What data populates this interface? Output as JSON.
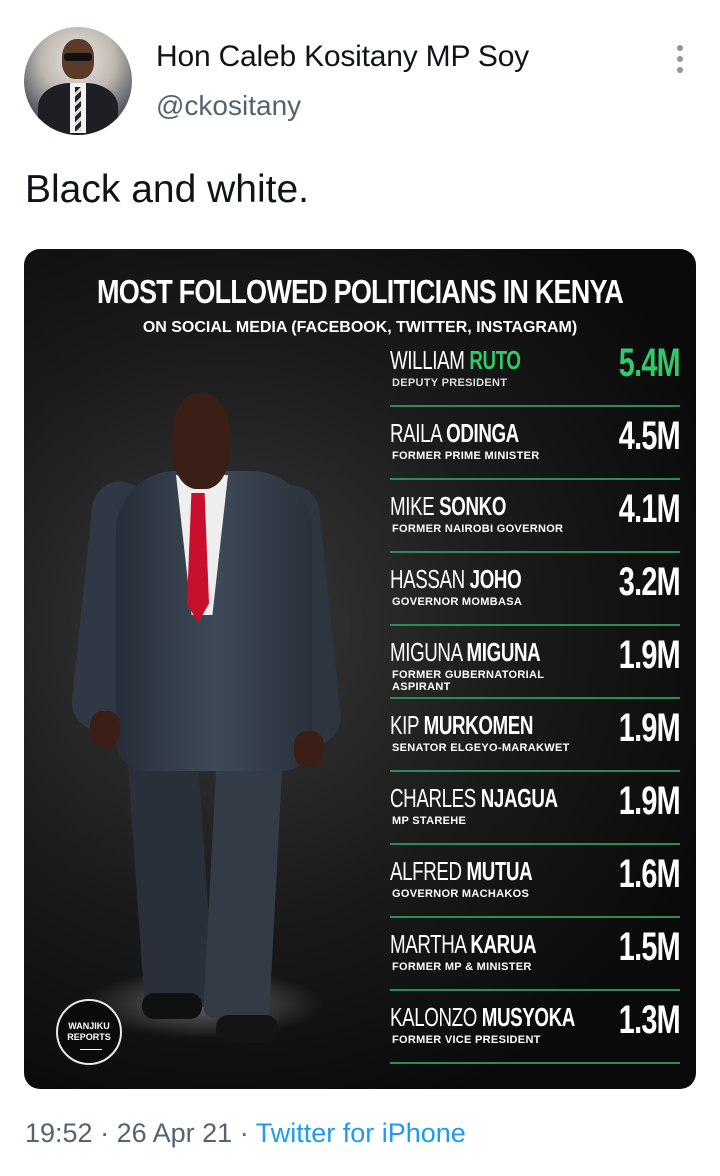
{
  "tweet": {
    "display_name": "Hon Caleb Kositany MP Soy",
    "handle": "@ckositany",
    "text": "Black and white.",
    "time": "19:52",
    "separator": "·",
    "date": "26 Apr 21",
    "source": "Twitter for iPhone",
    "more_icon": "more-vertical-icon"
  },
  "image": {
    "headline": "MOST FOLLOWED POLITICIANS IN KENYA",
    "subheadline": "ON SOCIAL MEDIA (FACEBOOK, TWITTER, INSTAGRAM)",
    "logo_text": "WANJIKU REPORTS",
    "accent_color": "#31c96a",
    "rows": [
      {
        "first": "WILLIAM",
        "last": "RUTO",
        "role": "DEPUTY PRESIDENT",
        "count": "5.4M"
      },
      {
        "first": "RAILA",
        "last": "ODINGA",
        "role": "FORMER PRIME MINISTER",
        "count": "4.5M"
      },
      {
        "first": "MIKE",
        "last": "SONKO",
        "role": "FORMER NAIROBI GOVERNOR",
        "count": "4.1M"
      },
      {
        "first": "HASSAN",
        "last": "JOHO",
        "role": "GOVERNOR MOMBASA",
        "count": "3.2M"
      },
      {
        "first": "MIGUNA",
        "last": "MIGUNA",
        "role": "FORMER GUBERNATORIAL ASPIRANT",
        "count": "1.9M"
      },
      {
        "first": "KIP",
        "last": "MURKOMEN",
        "role": "SENATOR ELGEYO-MARAKWET",
        "count": "1.9M"
      },
      {
        "first": "CHARLES",
        "last": "NJAGUA",
        "role": "MP STAREHE",
        "count": "1.9M"
      },
      {
        "first": "ALFRED",
        "last": "MUTUA",
        "role": "GOVERNOR MACHAKOS",
        "count": "1.6M"
      },
      {
        "first": "MARTHA",
        "last": "KARUA",
        "role": "FORMER MP & MINISTER",
        "count": "1.5M"
      },
      {
        "first": "KALONZO",
        "last": "MUSYOKA",
        "role": "FORMER VICE PRESIDENT",
        "count": "1.3M"
      }
    ]
  }
}
